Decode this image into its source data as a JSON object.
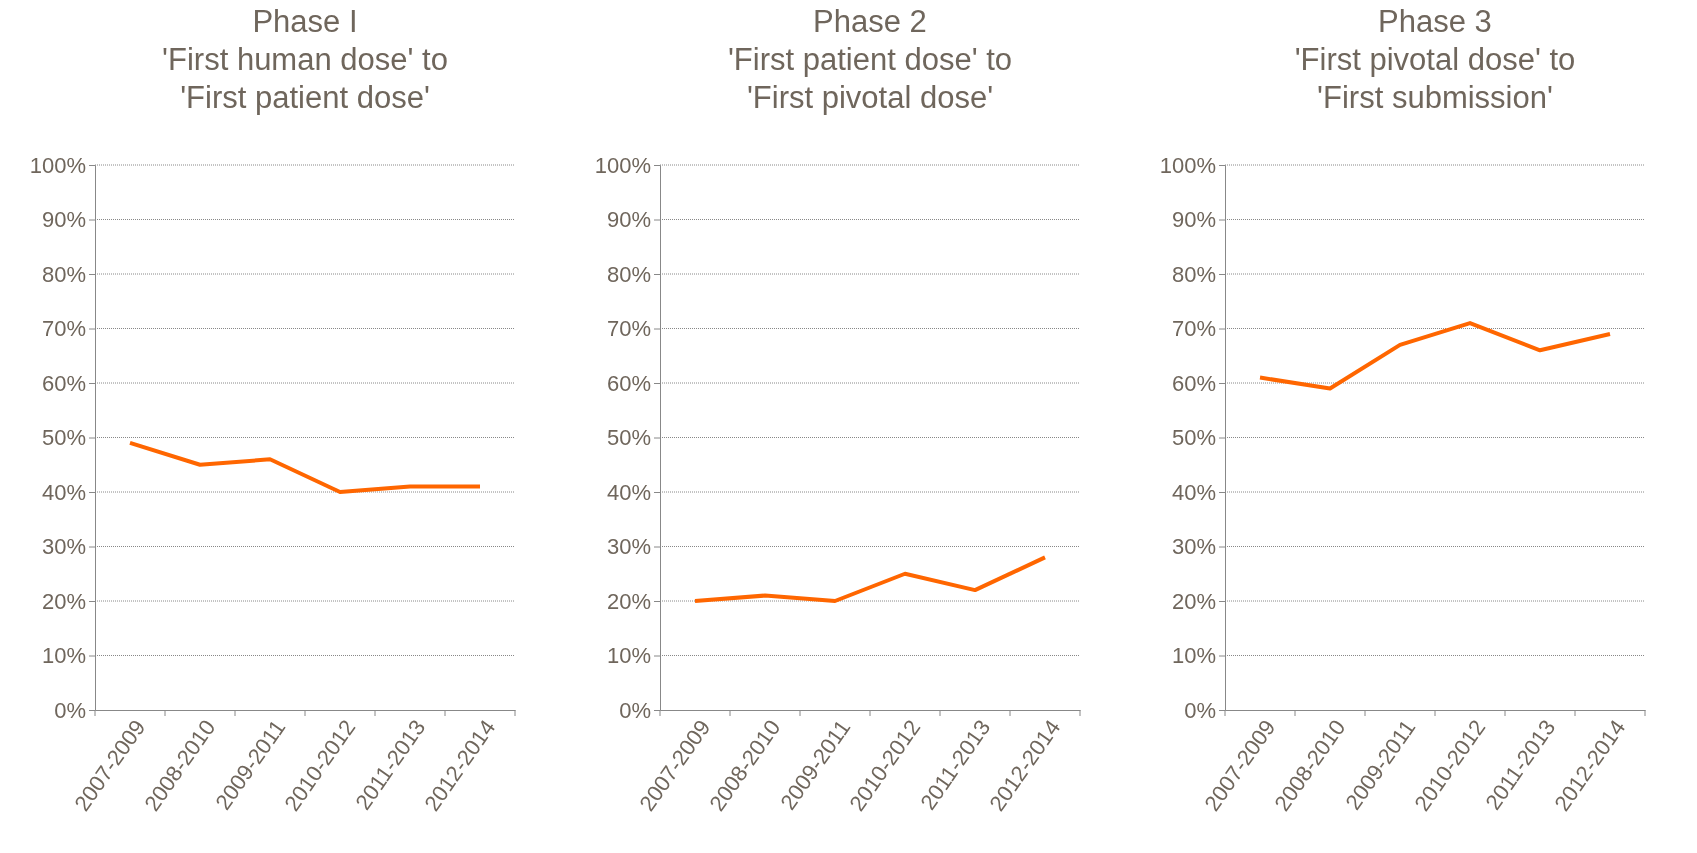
{
  "chart_data": [
    {
      "type": "line",
      "title": "Phase I\n'First human dose' to\n'First patient dose'",
      "categories": [
        "2007-2009",
        "2008-2010",
        "2009-2011",
        "2010-2012",
        "2011-2013",
        "2012-2014"
      ],
      "series": [
        {
          "color": "#ff6600",
          "values": [
            49,
            45,
            46,
            40,
            41,
            41
          ]
        }
      ],
      "ylim": [
        0,
        100
      ],
      "yticks": [
        {
          "value": 0,
          "label": "0%"
        },
        {
          "value": 10,
          "label": "10%"
        },
        {
          "value": 20,
          "label": "20%"
        },
        {
          "value": 30,
          "label": "30%"
        },
        {
          "value": 40,
          "label": "40%"
        },
        {
          "value": 50,
          "label": "50%"
        },
        {
          "value": 60,
          "label": "60%"
        },
        {
          "value": 70,
          "label": "70%"
        },
        {
          "value": 80,
          "label": "80%"
        },
        {
          "value": 90,
          "label": "90%"
        },
        {
          "value": 100,
          "label": "100%"
        }
      ],
      "grid": "y"
    },
    {
      "type": "line",
      "title": "Phase 2\n'First patient dose' to\n'First pivotal dose'",
      "categories": [
        "2007-2009",
        "2008-2010",
        "2009-2011",
        "2010-2012",
        "2011-2013",
        "2012-2014"
      ],
      "series": [
        {
          "color": "#ff6600",
          "values": [
            20,
            21,
            20,
            25,
            22,
            28
          ]
        }
      ],
      "ylim": [
        0,
        100
      ],
      "yticks": [
        {
          "value": 0,
          "label": "0%"
        },
        {
          "value": 10,
          "label": "10%"
        },
        {
          "value": 20,
          "label": "20%"
        },
        {
          "value": 30,
          "label": "30%"
        },
        {
          "value": 40,
          "label": "40%"
        },
        {
          "value": 50,
          "label": "50%"
        },
        {
          "value": 60,
          "label": "60%"
        },
        {
          "value": 70,
          "label": "70%"
        },
        {
          "value": 80,
          "label": "80%"
        },
        {
          "value": 90,
          "label": "90%"
        },
        {
          "value": 100,
          "label": "100%"
        }
      ],
      "grid": "y"
    },
    {
      "type": "line",
      "title": "Phase 3\n'First pivotal dose' to\n'First submission'",
      "categories": [
        "2007-2009",
        "2008-2010",
        "2009-2011",
        "2010-2012",
        "2011-2013",
        "2012-2014"
      ],
      "series": [
        {
          "color": "#ff6600",
          "values": [
            61,
            59,
            67,
            71,
            66,
            69
          ]
        }
      ],
      "ylim": [
        0,
        100
      ],
      "yticks": [
        {
          "value": 0,
          "label": "0%"
        },
        {
          "value": 10,
          "label": "10%"
        },
        {
          "value": 20,
          "label": "20%"
        },
        {
          "value": 30,
          "label": "30%"
        },
        {
          "value": 40,
          "label": "40%"
        },
        {
          "value": 50,
          "label": "50%"
        },
        {
          "value": 60,
          "label": "60%"
        },
        {
          "value": 70,
          "label": "70%"
        },
        {
          "value": 80,
          "label": "80%"
        },
        {
          "value": 90,
          "label": "90%"
        },
        {
          "value": 100,
          "label": "100%"
        }
      ],
      "grid": "y"
    }
  ]
}
